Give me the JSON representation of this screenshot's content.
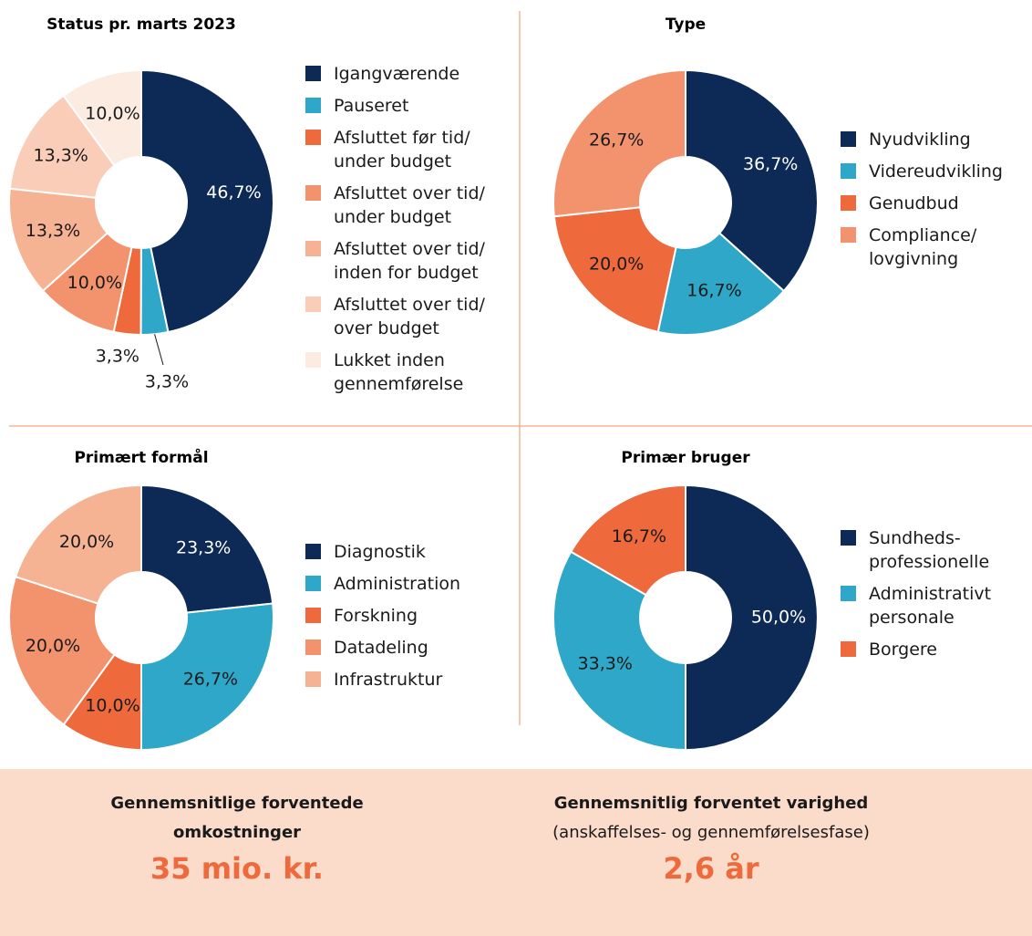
{
  "chart_data": [
    {
      "type": "pie",
      "title": "Status pr. marts 2023",
      "categories": [
        "Igangværende",
        "Pauseret",
        "Afsluttet før tid/\nunder budget",
        "Afsluttet over tid/\nunder budget",
        "Afsluttet over tid/\ninden for budget",
        "Afsluttet over tid/\nover budget",
        "Lukket inden\ngennemførelse"
      ],
      "values": [
        46.7,
        3.3,
        3.3,
        10.0,
        13.3,
        13.3,
        10.0
      ],
      "value_labels": [
        "46,7%",
        "3,3%",
        "3,3%",
        "10,0%",
        "13,3%",
        "13,3%",
        "10,0%"
      ],
      "colors": [
        "#0c2a55",
        "#2fa7c8",
        "#ee6a3c",
        "#f2936d",
        "#f6b394",
        "#f9cdb8",
        "#fcebe1"
      ]
    },
    {
      "type": "pie",
      "title": "Type",
      "categories": [
        "Nyudvikling",
        "Videreudvikling",
        "Genudbud",
        "Compliance/\nlovgivning"
      ],
      "values": [
        36.7,
        16.7,
        20.0,
        26.7
      ],
      "value_labels": [
        "36,7%",
        "16,7%",
        "20,0%",
        "26,7%"
      ],
      "colors": [
        "#0c2a55",
        "#2fa7c8",
        "#ee6a3c",
        "#f2936d"
      ]
    },
    {
      "type": "pie",
      "title": "Primært formål",
      "categories": [
        "Diagnostik",
        "Administration",
        "Forskning",
        "Datadeling",
        "Infrastruktur"
      ],
      "values": [
        23.3,
        26.7,
        10.0,
        20.0,
        20.0
      ],
      "value_labels": [
        "23,3%",
        "26,7%",
        "10,0%",
        "20,0%",
        "20,0%"
      ],
      "colors": [
        "#0c2a55",
        "#2fa7c8",
        "#ee6a3c",
        "#f2936d",
        "#f6b394"
      ]
    },
    {
      "type": "pie",
      "title": "Primær bruger",
      "categories": [
        "Sundheds-\nprofessionelle",
        "Administrativt\npersonale",
        "Borgere"
      ],
      "values": [
        50.0,
        33.3,
        16.7
      ],
      "value_labels": [
        "50,0%",
        "33,3%",
        "16,7%"
      ],
      "colors": [
        "#0c2a55",
        "#2fa7c8",
        "#ee6a3c"
      ]
    }
  ],
  "summary": {
    "cost": {
      "heading": "Gennemsnitlige forventede\nomkostninger",
      "value": "35 mio. kr."
    },
    "duration": {
      "heading": "Gennemsnitlig forventet varighed",
      "subheading": "(anskaffelses- og gennemførelsesfase)",
      "value": "2,6 år"
    }
  }
}
